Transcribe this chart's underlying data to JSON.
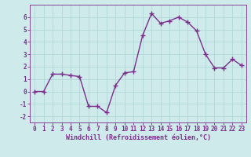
{
  "x": [
    0,
    1,
    2,
    3,
    4,
    5,
    6,
    7,
    8,
    9,
    10,
    11,
    12,
    13,
    14,
    15,
    16,
    17,
    18,
    19,
    20,
    21,
    22,
    23
  ],
  "y": [
    0,
    0,
    1.4,
    1.4,
    1.3,
    1.2,
    -1.2,
    -1.2,
    -1.7,
    0.5,
    1.5,
    1.6,
    4.5,
    6.3,
    5.5,
    5.7,
    6.0,
    5.6,
    4.9,
    3.0,
    1.9,
    1.9,
    2.6,
    2.1
  ],
  "line_color": "#7b2d8b",
  "marker": "+",
  "marker_size": 4,
  "line_width": 1.0,
  "bg_color": "#ceeaea",
  "grid_color": "#b0d8d8",
  "xlabel": "Windchill (Refroidissement éolien,°C)",
  "xlabel_color": "#7b2d8b",
  "tick_color": "#7b2d8b",
  "spine_color": "#7b2d8b",
  "xlim": [
    -0.5,
    23.5
  ],
  "ylim": [
    -2.5,
    7.0
  ],
  "yticks": [
    -2,
    -1,
    0,
    1,
    2,
    3,
    4,
    5,
    6
  ],
  "xticks": [
    0,
    1,
    2,
    3,
    4,
    5,
    6,
    7,
    8,
    9,
    10,
    11,
    12,
    13,
    14,
    15,
    16,
    17,
    18,
    19,
    20,
    21,
    22,
    23
  ],
  "tick_fontsize": 5.5,
  "xlabel_fontsize": 6.0
}
